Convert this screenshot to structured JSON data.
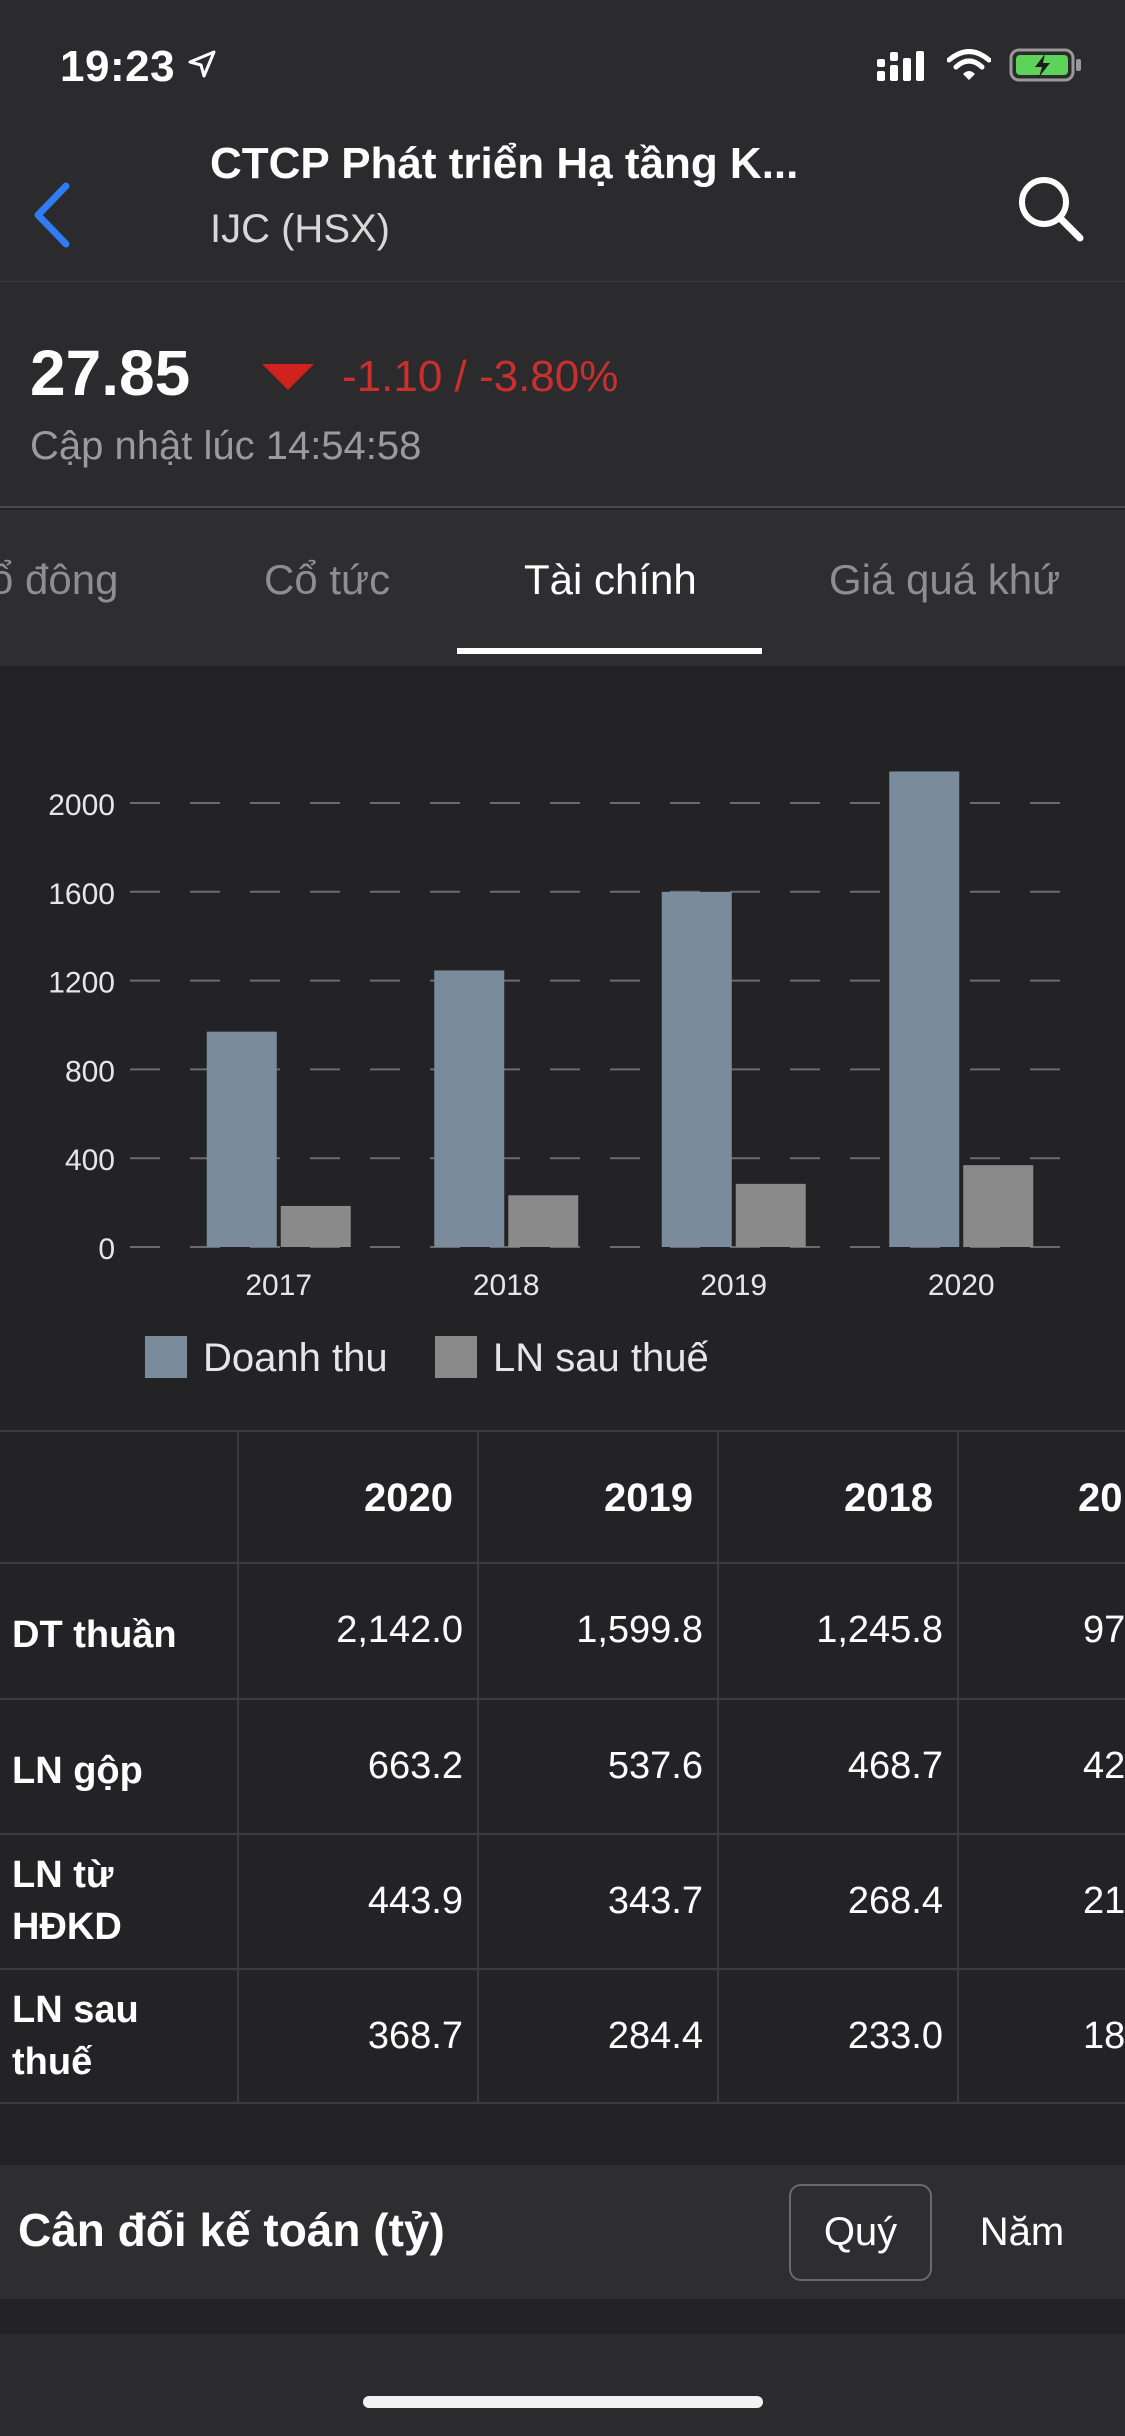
{
  "status_bar": {
    "time": "19:23"
  },
  "header": {
    "company_name": "CTCP Phát triển Hạ tầng K...",
    "ticker": "IJC (HSX)"
  },
  "quote": {
    "price": "27.85",
    "change": "-1.10 / -3.80%",
    "updated": "Cập nhật lúc 14:54:58",
    "change_color": "#c9302c"
  },
  "tabs": [
    {
      "label": "ổ đông"
    },
    {
      "label": "Cổ tức"
    },
    {
      "label": "Tài chính",
      "active": true
    },
    {
      "label": "Giá quá khứ"
    }
  ],
  "chart_data": {
    "type": "bar",
    "categories": [
      "2017",
      "2018",
      "2019",
      "2020"
    ],
    "series": [
      {
        "name": "Doanh thu",
        "values": [
          970,
          1245.8,
          1599.8,
          2142.0
        ],
        "color": "#7a8c9c"
      },
      {
        "name": "LN sau thuế",
        "values": [
          185,
          233.0,
          284.4,
          368.7
        ],
        "color": "#8a8a8a"
      }
    ],
    "yticks": [
      "0",
      "400",
      "800",
      "1200",
      "1600",
      "2000"
    ],
    "ylim": [
      0,
      2000
    ],
    "grid": true,
    "legend_position": "bottom"
  },
  "table": {
    "headers": [
      "2020",
      "2019",
      "2018",
      "20"
    ],
    "rows": [
      {
        "label": "DT thuần",
        "values": [
          "2,142.0",
          "1,599.8",
          "1,245.8",
          "97"
        ]
      },
      {
        "label": "LN gộp",
        "values": [
          "663.2",
          "537.6",
          "468.7",
          "42"
        ]
      },
      {
        "label": "LN từ HĐKD",
        "values": [
          "443.9",
          "343.7",
          "268.4",
          "21"
        ]
      },
      {
        "label": "LN sau thuế",
        "values": [
          "368.7",
          "284.4",
          "233.0",
          "18"
        ]
      }
    ]
  },
  "balance_section": {
    "title": "Cân đối kế toán (tỷ)",
    "quarter_label": "Quý",
    "year_label": "Năm"
  },
  "icons": [
    "location-arrow-icon",
    "signal-icon",
    "wifi-icon",
    "battery-charging-icon",
    "back-chevron-icon",
    "search-icon",
    "price-down-arrow-icon"
  ],
  "colors": {
    "accent_blue": "#2f7cf6",
    "down_red": "#c9302c",
    "battery_green": "#5ed35a"
  }
}
